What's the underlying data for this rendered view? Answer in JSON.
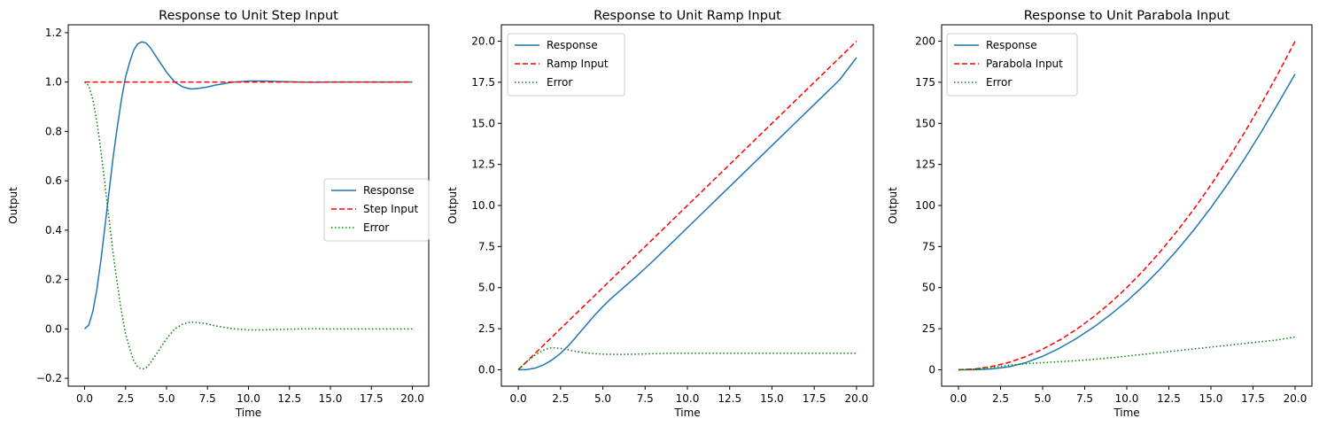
{
  "chart_data": [
    {
      "type": "line",
      "title": "Response to Unit Step Input",
      "xlabel": "Time",
      "ylabel": "Output",
      "xlim": [
        -1,
        21
      ],
      "ylim": [
        -0.232,
        1.232
      ],
      "xticks": [
        0,
        2.5,
        5,
        7.5,
        10,
        12.5,
        15,
        17.5,
        20
      ],
      "xtick_labels": [
        "0.0",
        "2.5",
        "5.0",
        "7.5",
        "10.0",
        "12.5",
        "15.0",
        "17.5",
        "20.0"
      ],
      "yticks": [
        -0.2,
        0,
        0.2,
        0.4,
        0.6,
        0.8,
        1.0,
        1.2
      ],
      "ytick_labels": [
        "−0.2",
        "0.0",
        "0.2",
        "0.4",
        "0.6",
        "0.8",
        "1.0",
        "1.2"
      ],
      "legend_position": "center-right",
      "grid": false,
      "series": [
        {
          "name": "Response",
          "color": "#1f77b4",
          "style": "solid",
          "points": [
            [
              0,
              0
            ],
            [
              0.25,
              0.015
            ],
            [
              0.5,
              0.07
            ],
            [
              0.75,
              0.16
            ],
            [
              1,
              0.28
            ],
            [
              1.25,
              0.42
            ],
            [
              1.5,
              0.56
            ],
            [
              1.75,
              0.7
            ],
            [
              2,
              0.82
            ],
            [
              2.25,
              0.93
            ],
            [
              2.5,
              1.02
            ],
            [
              2.75,
              1.08
            ],
            [
              3,
              1.13
            ],
            [
              3.25,
              1.155
            ],
            [
              3.5,
              1.163
            ],
            [
              3.75,
              1.158
            ],
            [
              4,
              1.14
            ],
            [
              4.5,
              1.09
            ],
            [
              5,
              1.04
            ],
            [
              5.5,
              1.0
            ],
            [
              6,
              0.98
            ],
            [
              6.5,
              0.972
            ],
            [
              7,
              0.975
            ],
            [
              7.5,
              0.98
            ],
            [
              8,
              0.988
            ],
            [
              9,
              0.999
            ],
            [
              10,
              1.004
            ],
            [
              11,
              1.004
            ],
            [
              12,
              1.002
            ],
            [
              13,
              1.0
            ],
            [
              14,
              0.999
            ],
            [
              15,
              1.0
            ],
            [
              16,
              1.0
            ],
            [
              17,
              1.0
            ],
            [
              18,
              1.0
            ],
            [
              19,
              1.0
            ],
            [
              20,
              1.0
            ]
          ]
        },
        {
          "name": "Step Input",
          "color": "#ff0000",
          "style": "dashed",
          "points": [
            [
              0,
              1
            ],
            [
              20,
              1
            ]
          ]
        },
        {
          "name": "Error",
          "color": "#008000",
          "style": "dotted",
          "points": [
            [
              0,
              1
            ],
            [
              0.25,
              0.985
            ],
            [
              0.5,
              0.93
            ],
            [
              0.75,
              0.84
            ],
            [
              1,
              0.72
            ],
            [
              1.25,
              0.58
            ],
            [
              1.5,
              0.44
            ],
            [
              1.75,
              0.3
            ],
            [
              2,
              0.18
            ],
            [
              2.25,
              0.07
            ],
            [
              2.5,
              -0.02
            ],
            [
              2.75,
              -0.08
            ],
            [
              3,
              -0.13
            ],
            [
              3.25,
              -0.155
            ],
            [
              3.5,
              -0.163
            ],
            [
              3.75,
              -0.158
            ],
            [
              4,
              -0.14
            ],
            [
              4.5,
              -0.09
            ],
            [
              5,
              -0.04
            ],
            [
              5.5,
              0.0
            ],
            [
              6,
              0.02
            ],
            [
              6.5,
              0.028
            ],
            [
              7,
              0.025
            ],
            [
              7.5,
              0.02
            ],
            [
              8,
              0.012
            ],
            [
              9,
              0.001
            ],
            [
              10,
              -0.004
            ],
            [
              11,
              -0.004
            ],
            [
              12,
              -0.002
            ],
            [
              13,
              0
            ],
            [
              14,
              0.001
            ],
            [
              15,
              0
            ],
            [
              16,
              0
            ],
            [
              17,
              0
            ],
            [
              18,
              0
            ],
            [
              19,
              0
            ],
            [
              20,
              0
            ]
          ]
        }
      ]
    },
    {
      "type": "line",
      "title": "Response to Unit Ramp Input",
      "xlabel": "Time",
      "ylabel": "Output",
      "xlim": [
        -1,
        21
      ],
      "ylim": [
        -1,
        21
      ],
      "xticks": [
        0,
        2.5,
        5,
        7.5,
        10,
        12.5,
        15,
        17.5,
        20
      ],
      "xtick_labels": [
        "0.0",
        "2.5",
        "5.0",
        "7.5",
        "10.0",
        "12.5",
        "15.0",
        "17.5",
        "20.0"
      ],
      "yticks": [
        0,
        2.5,
        5,
        7.5,
        10,
        12.5,
        15,
        17.5,
        20
      ],
      "ytick_labels": [
        "0.0",
        "2.5",
        "5.0",
        "7.5",
        "10.0",
        "12.5",
        "15.0",
        "17.5",
        "20.0"
      ],
      "legend_position": "upper-left",
      "grid": false,
      "series": [
        {
          "name": "Response",
          "color": "#1f77b4",
          "style": "solid",
          "points": [
            [
              0,
              0
            ],
            [
              0.5,
              0.01
            ],
            [
              1,
              0.1
            ],
            [
              1.5,
              0.3
            ],
            [
              2,
              0.6
            ],
            [
              2.5,
              1.0
            ],
            [
              3,
              1.5
            ],
            [
              3.5,
              2.1
            ],
            [
              4,
              2.7
            ],
            [
              4.5,
              3.3
            ],
            [
              5,
              3.85
            ],
            [
              5.5,
              4.35
            ],
            [
              6,
              4.8
            ],
            [
              7,
              5.7
            ],
            [
              8,
              6.65
            ],
            [
              9,
              7.65
            ],
            [
              10,
              8.65
            ],
            [
              11,
              9.65
            ],
            [
              12,
              10.65
            ],
            [
              13,
              11.65
            ],
            [
              14,
              12.65
            ],
            [
              15,
              13.65
            ],
            [
              16,
              14.65
            ],
            [
              17,
              15.65
            ],
            [
              18,
              16.65
            ],
            [
              19,
              17.65
            ],
            [
              20,
              19.0
            ]
          ]
        },
        {
          "name": "Ramp Input",
          "color": "#ff0000",
          "style": "dashed",
          "points": [
            [
              0,
              0
            ],
            [
              20,
              20
            ]
          ]
        },
        {
          "name": "Error",
          "color": "#008000",
          "style": "dotted",
          "points": [
            [
              0,
              0
            ],
            [
              0.5,
              0.49
            ],
            [
              1,
              0.9
            ],
            [
              1.5,
              1.2
            ],
            [
              2,
              1.35
            ],
            [
              2.5,
              1.3
            ],
            [
              3,
              1.2
            ],
            [
              3.5,
              1.1
            ],
            [
              4,
              1.02
            ],
            [
              4.5,
              0.98
            ],
            [
              5,
              0.95
            ],
            [
              6,
              0.93
            ],
            [
              7,
              0.95
            ],
            [
              8,
              0.98
            ],
            [
              9,
              1.0
            ],
            [
              10,
              1.0
            ],
            [
              12,
              1.0
            ],
            [
              14,
              1.0
            ],
            [
              16,
              1.0
            ],
            [
              18,
              1.0
            ],
            [
              20,
              1.0
            ]
          ]
        }
      ]
    },
    {
      "type": "line",
      "title": "Response to Unit Parabola Input",
      "xlabel": "Time",
      "ylabel": "Output",
      "xlim": [
        -1,
        21
      ],
      "ylim": [
        -10,
        210
      ],
      "xticks": [
        0,
        2.5,
        5,
        7.5,
        10,
        12.5,
        15,
        17.5,
        20
      ],
      "xtick_labels": [
        "0.0",
        "2.5",
        "5.0",
        "7.5",
        "10.0",
        "12.5",
        "15.0",
        "17.5",
        "20.0"
      ],
      "yticks": [
        0,
        25,
        50,
        75,
        100,
        125,
        150,
        175,
        200
      ],
      "ytick_labels": [
        "0",
        "25",
        "50",
        "75",
        "100",
        "125",
        "150",
        "175",
        "200"
      ],
      "legend_position": "upper-left",
      "grid": false,
      "series": [
        {
          "name": "Response",
          "color": "#1f77b4",
          "style": "solid",
          "points": [
            [
              0,
              0
            ],
            [
              1,
              0.05
            ],
            [
              2,
              0.5
            ],
            [
              3,
              1.8
            ],
            [
              4,
              4.3
            ],
            [
              5,
              8.2
            ],
            [
              6,
              13.1
            ],
            [
              7,
              19
            ],
            [
              8,
              25.7
            ],
            [
              9,
              33.3
            ],
            [
              10,
              41.7
            ],
            [
              11,
              51.1
            ],
            [
              12,
              61.5
            ],
            [
              13,
              72.9
            ],
            [
              14,
              85.3
            ],
            [
              15,
              98.7
            ],
            [
              16,
              113.1
            ],
            [
              17,
              128.5
            ],
            [
              18,
              144.9
            ],
            [
              19,
              162.3
            ],
            [
              20,
              180
            ]
          ]
        },
        {
          "name": "Parabola Input",
          "color": "#ff0000",
          "style": "dashed",
          "points": [
            [
              0,
              0
            ],
            [
              1,
              0.5
            ],
            [
              2,
              2
            ],
            [
              3,
              4.5
            ],
            [
              4,
              8
            ],
            [
              5,
              12.5
            ],
            [
              6,
              18
            ],
            [
              7,
              24.5
            ],
            [
              8,
              32
            ],
            [
              9,
              40.5
            ],
            [
              10,
              50
            ],
            [
              11,
              60.5
            ],
            [
              12,
              72
            ],
            [
              13,
              84.5
            ],
            [
              14,
              98
            ],
            [
              15,
              112.5
            ],
            [
              16,
              128
            ],
            [
              17,
              144.5
            ],
            [
              18,
              162
            ],
            [
              19,
              180.5
            ],
            [
              20,
              200
            ]
          ]
        },
        {
          "name": "Error",
          "color": "#008000",
          "style": "dotted",
          "points": [
            [
              0,
              0
            ],
            [
              1,
              0.45
            ],
            [
              2,
              1.5
            ],
            [
              3,
              2.7
            ],
            [
              4,
              3.7
            ],
            [
              5,
              4.3
            ],
            [
              6,
              4.9
            ],
            [
              7,
              5.5
            ],
            [
              8,
              6.3
            ],
            [
              9,
              7.2
            ],
            [
              10,
              8.3
            ],
            [
              11,
              9.4
            ],
            [
              12,
              10.5
            ],
            [
              13,
              11.6
            ],
            [
              14,
              12.7
            ],
            [
              15,
              13.8
            ],
            [
              16,
              14.9
            ],
            [
              17,
              16
            ],
            [
              18,
              17.1
            ],
            [
              19,
              18.2
            ],
            [
              20,
              20
            ]
          ]
        }
      ]
    }
  ]
}
